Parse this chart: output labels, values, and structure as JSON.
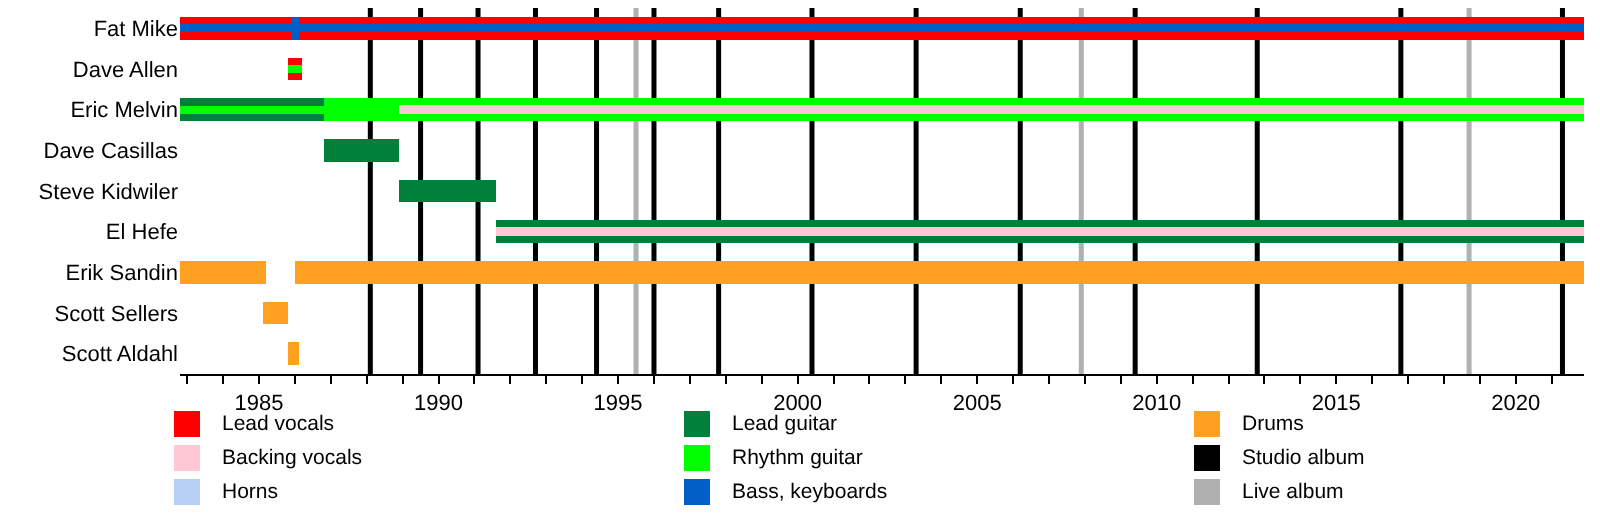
{
  "chart_data": {
    "type": "bar",
    "orientation": "horizontal",
    "legend": "bottom",
    "categories": [
      "Fat Mike",
      "Dave Allen",
      "Eric Melvin",
      "Dave Casillas",
      "Steve Kidwiler",
      "El Hefe",
      "Erik Sandin",
      "Scott Sellers",
      "Scott Aldahl"
    ],
    "series": [
      {
        "name": "Lead vocals",
        "color": "#ff0000",
        "base": [
          1982.8,
          1985.8,
          null,
          null,
          null,
          null,
          null,
          null,
          null
        ],
        "values": [
          39.1,
          0.4,
          null,
          null,
          null,
          null,
          null,
          null,
          null
        ]
      },
      {
        "name": "Backing vocals",
        "color": "#ffc8d4",
        "base": [
          null,
          null,
          1988.9,
          null,
          null,
          1991.6,
          null,
          null,
          null
        ],
        "values": [
          null,
          null,
          33.0,
          null,
          null,
          30.3,
          null,
          null,
          null
        ]
      },
      {
        "name": "Horns",
        "color": "#b8cff5",
        "base": [
          null,
          null,
          null,
          null,
          null,
          null,
          null,
          null,
          null
        ],
        "values": [
          null,
          null,
          null,
          null,
          null,
          null,
          null,
          null,
          null
        ]
      },
      {
        "name": "Lead guitar",
        "color": "#00803a",
        "base": [
          null,
          null,
          1982.8,
          1986.8,
          1988.9,
          1991.6,
          null,
          null,
          null
        ],
        "values": [
          null,
          null,
          4.0,
          2.1,
          2.7,
          30.3,
          null,
          null,
          null
        ]
      },
      {
        "name": "Rhythm guitar",
        "color": "#00ff00",
        "base": [
          null,
          null,
          1986.8,
          null,
          null,
          null,
          null,
          null,
          null
        ],
        "values": [
          null,
          null,
          35.1,
          null,
          null,
          null,
          null,
          null,
          null
        ]
      },
      {
        "name": "Bass, keyboards",
        "color": "#0060c8",
        "base": [
          1982.8,
          null,
          null,
          null,
          null,
          null,
          null,
          null,
          null
        ],
        "values": [
          39.1,
          null,
          null,
          null,
          null,
          null,
          null,
          null,
          null
        ]
      },
      {
        "name": "Drums",
        "color": "#ffa020",
        "base": [
          null,
          null,
          null,
          null,
          null,
          null,
          1982.8,
          1985.1,
          1985.8
        ],
        "values": [
          null,
          null,
          null,
          null,
          null,
          null,
          2.4,
          0.7,
          0.3
        ]
      },
      {
        "color": "#ffa020",
        "base": [
          null,
          null,
          null,
          null,
          null,
          null,
          1986.0,
          null,
          null
        ],
        "values": [
          null,
          null,
          null,
          null,
          null,
          null,
          35.9,
          null,
          null
        ]
      },
      {
        "color": "#00ff00",
        "base": [
          null,
          1985.8,
          1982.8,
          null,
          null,
          null,
          null,
          null,
          null
        ],
        "values": [
          null,
          0.4,
          4.0,
          null,
          null,
          null,
          null,
          null,
          null
        ]
      },
      {
        "color": "#0060c8",
        "base": [
          1985.9,
          null,
          null,
          null,
          null,
          null,
          null,
          null,
          null
        ],
        "values": [
          0.2,
          null,
          null,
          null,
          null,
          null,
          null,
          null,
          null
        ]
      }
    ],
    "xlim": [
      1982.8,
      2021.9
    ],
    "xticks": [
      {
        "value": 1983,
        "label": null
      },
      {
        "value": 1984,
        "label": null
      },
      1985,
      {
        "value": 1986,
        "label": null
      },
      {
        "value": 1987,
        "label": null
      },
      {
        "value": 1988,
        "label": null
      },
      {
        "value": 1989,
        "label": null
      },
      1990,
      {
        "value": 1991,
        "label": null
      },
      {
        "value": 1992,
        "label": null
      },
      {
        "value": 1993,
        "label": null
      },
      {
        "value": 1994,
        "label": null
      },
      1995,
      {
        "value": 1996,
        "label": null
      },
      {
        "value": 1997,
        "label": null
      },
      {
        "value": 1998,
        "label": null
      },
      {
        "value": 1999,
        "label": null
      },
      2000,
      {
        "value": 2001,
        "label": null
      },
      {
        "value": 2002,
        "label": null
      },
      {
        "value": 2003,
        "label": null
      },
      {
        "value": 2004,
        "label": null
      },
      2005,
      {
        "value": 2006,
        "label": null
      },
      {
        "value": 2007,
        "label": null
      },
      {
        "value": 2008,
        "label": null
      },
      {
        "value": 2009,
        "label": null
      },
      2010,
      {
        "value": 2011,
        "label": null
      },
      {
        "value": 2012,
        "label": null
      },
      {
        "value": 2013,
        "label": null
      },
      {
        "value": 2014,
        "label": null
      },
      2015,
      {
        "value": 2016,
        "label": null
      },
      {
        "value": 2017,
        "label": null
      },
      {
        "value": 2018,
        "label": null
      },
      {
        "value": 2019,
        "label": null
      },
      2020,
      {
        "value": 2021,
        "label": null
      }
    ],
    "ref_lines": [
      {
        "axis": "x",
        "value": 1988.1,
        "label": "Studio album",
        "color": "#000000"
      },
      {
        "axis": "x",
        "value": 1989.5,
        "color": "#000000"
      },
      {
        "axis": "x",
        "value": 1991.1,
        "color": "#000000"
      },
      {
        "axis": "x",
        "value": 1992.7,
        "color": "#000000"
      },
      {
        "axis": "x",
        "value": 1994.4,
        "color": "#000000"
      },
      {
        "axis": "x",
        "value": 1996.0,
        "color": "#000000"
      },
      {
        "axis": "x",
        "value": 1997.8,
        "color": "#000000"
      },
      {
        "axis": "x",
        "value": 2000.4,
        "color": "#000000"
      },
      {
        "axis": "x",
        "value": 2003.3,
        "color": "#000000"
      },
      {
        "axis": "x",
        "value": 2006.2,
        "color": "#000000"
      },
      {
        "axis": "x",
        "value": 2009.4,
        "color": "#000000"
      },
      {
        "axis": "x",
        "value": 2012.8,
        "color": "#000000"
      },
      {
        "axis": "x",
        "value": 2016.8,
        "color": "#000000"
      },
      {
        "axis": "x",
        "value": 2021.3,
        "color": "#000000"
      },
      {
        "axis": "x",
        "value": 1995.5,
        "label": "Live album",
        "color": "#b0b0b0"
      },
      {
        "axis": "x",
        "value": 2007.9,
        "color": "#b0b0b0"
      },
      {
        "axis": "x",
        "value": 2018.7,
        "color": "#b0b0b0"
      }
    ]
  }
}
